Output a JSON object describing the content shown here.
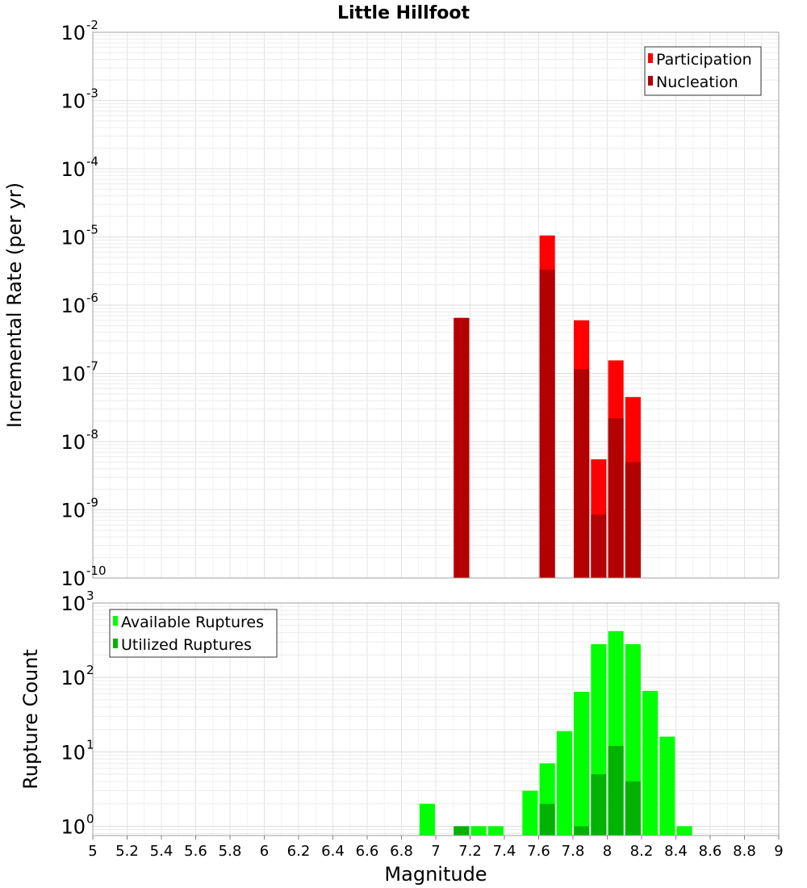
{
  "chart_data": [
    {
      "type": "bar",
      "title": "Little Hillfoot",
      "ylabel": "Incremental Rate (per yr)",
      "yscale": "log",
      "ylim": [
        1e-10,
        0.01
      ],
      "xlim": [
        5,
        9
      ],
      "bar_width": 0.09,
      "ytick_labels": [
        {
          "base": "10",
          "exp": "-10"
        },
        {
          "base": "10",
          "exp": "-9"
        },
        {
          "base": "10",
          "exp": "-8"
        },
        {
          "base": "10",
          "exp": "-7"
        },
        {
          "base": "10",
          "exp": "-6"
        },
        {
          "base": "10",
          "exp": "-5"
        },
        {
          "base": "10",
          "exp": "-4"
        },
        {
          "base": "10",
          "exp": "-3"
        },
        {
          "base": "10",
          "exp": "-2"
        }
      ],
      "legend_position": "top-right",
      "grid": true,
      "series": [
        {
          "name": "Participation",
          "color": "#ff0000",
          "x": [
            7.15,
            7.65,
            7.85,
            7.95,
            8.05,
            8.15
          ],
          "values": [
            6.5e-07,
            1.05e-05,
            6e-07,
            5.5e-09,
            1.55e-07,
            4.5e-08
          ]
        },
        {
          "name": "Nucleation",
          "color": "#b30000",
          "x": [
            7.15,
            7.65,
            7.85,
            7.95,
            8.05,
            8.15
          ],
          "values": [
            6.5e-07,
            3.3e-06,
            1.15e-07,
            8.5e-10,
            2.2e-08,
            5e-09
          ]
        }
      ]
    },
    {
      "type": "bar",
      "ylabel": "Rupture Count",
      "xlabel": "Magnitude",
      "yscale": "log",
      "ylim": [
        0.75,
        1000
      ],
      "xlim": [
        5,
        9
      ],
      "bar_width": 0.09,
      "ytick_labels": [
        {
          "base": "10",
          "exp": "0",
          "value": 1
        },
        {
          "base": "10",
          "exp": "1",
          "value": 10
        },
        {
          "base": "10",
          "exp": "2",
          "value": 100
        },
        {
          "base": "10",
          "exp": "3",
          "value": 1000
        }
      ],
      "xtick_labels": [
        "5",
        "5.2",
        "5.4",
        "5.6",
        "5.8",
        "6",
        "6.2",
        "6.4",
        "6.6",
        "6.8",
        "7",
        "7.2",
        "7.4",
        "7.6",
        "7.8",
        "8",
        "8.2",
        "8.4",
        "8.6",
        "8.8",
        "9"
      ],
      "legend_position": "top-left",
      "grid": true,
      "series": [
        {
          "name": "Available Ruptures",
          "color": "#00ff00",
          "x": [
            6.95,
            7.15,
            7.25,
            7.35,
            7.55,
            7.65,
            7.75,
            7.85,
            7.95,
            8.05,
            8.15,
            8.25,
            8.35,
            8.45
          ],
          "values": [
            2,
            1,
            1,
            1,
            3,
            7,
            19,
            64,
            280,
            420,
            280,
            66,
            16,
            1
          ]
        },
        {
          "name": "Utilized Ruptures",
          "color": "#00b300",
          "x": [
            7.15,
            7.65,
            7.85,
            7.95,
            8.05,
            8.15
          ],
          "values": [
            1,
            2,
            1,
            5,
            12,
            4
          ]
        }
      ]
    }
  ]
}
